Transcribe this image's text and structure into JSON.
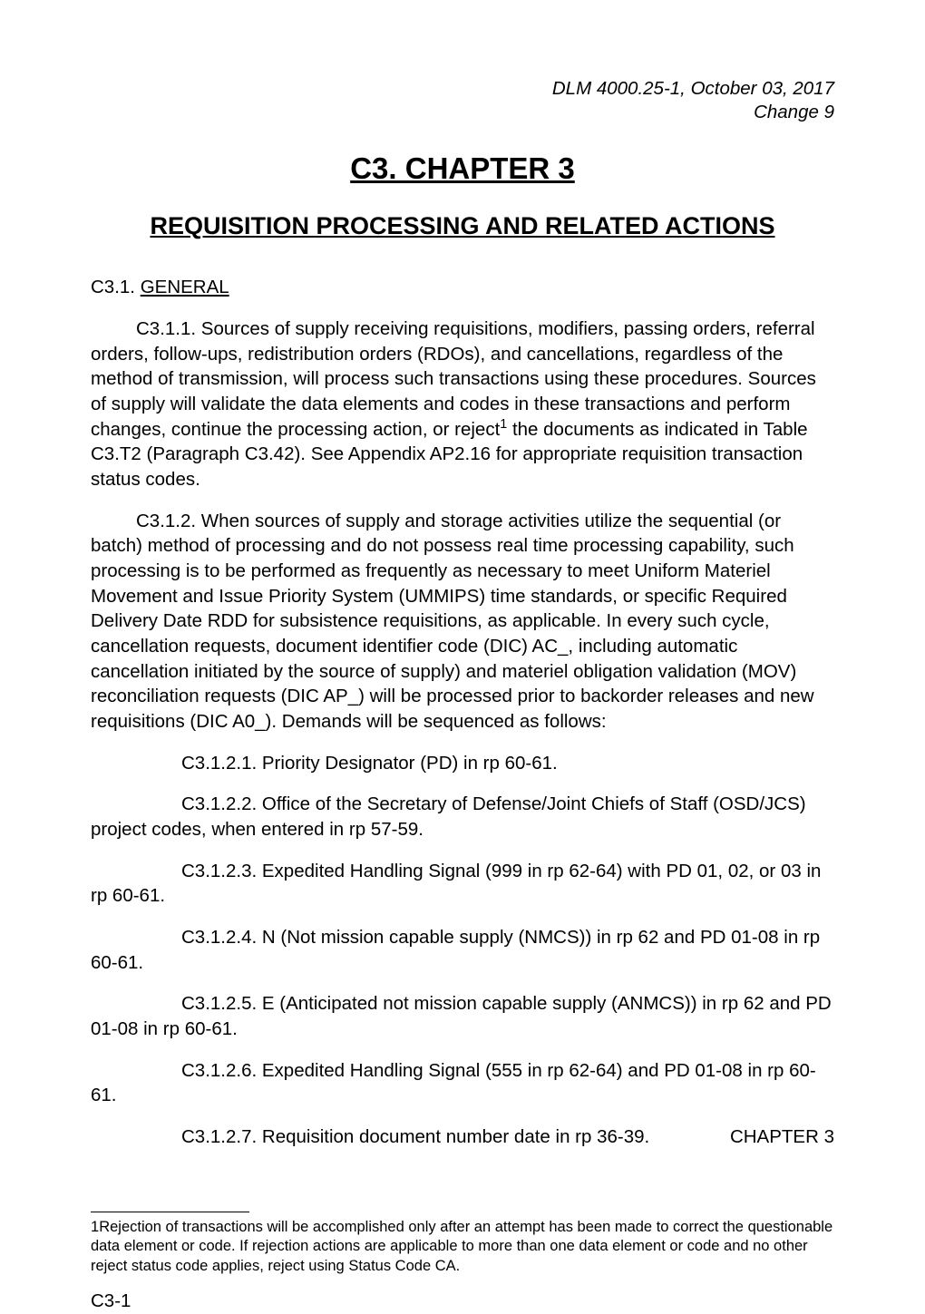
{
  "header": {
    "line1": "DLM 4000.25-1, October 03, 2017",
    "line2": "Change 9"
  },
  "chapter": {
    "title": "C3. CHAPTER 3",
    "subtitle": "REQUISITION PROCESSING AND RELATED ACTIONS"
  },
  "section": {
    "label": "C3.1.  ",
    "title": "GENERAL"
  },
  "paragraphs": {
    "p1": "C3.1.1.  Sources of supply receiving requisitions, modifiers, passing orders, referral orders, follow-ups, redistribution orders (RDOs), and cancellations, regardless of the method of transmission, will process such transactions using these procedures.  Sources of supply will validate the data elements and codes in these transactions and perform changes, continue the processing action, or reject",
    "p1_after": " the documents as indicated in Table C3.T2 (Paragraph C3.42).  See Appendix AP2.16 for appropriate requisition transaction status codes.",
    "p2": "C3.1.2.  When sources of supply and storage activities utilize the sequential (or batch) method of processing and do not possess real time processing capability, such processing is to be performed as frequently as necessary to meet Uniform Materiel Movement and Issue Priority System (UMMIPS) time standards, or specific Required Delivery Date RDD for subsistence requisitions, as applicable.  In every such cycle, cancellation requests, document identifier code (DIC) AC_, including automatic cancellation initiated by the source of supply) and materiel obligation validation (MOV) reconciliation requests (DIC AP_) will be processed prior to backorder releases and new requisitions (DIC A0_).  Demands will be sequenced as follows:",
    "p3": "C3.1.2.1.  Priority Designator (PD) in rp 60-61.",
    "p4": "C3.1.2.2.  Office of the Secretary of Defense/Joint Chiefs of Staff (OSD/JCS) project codes, when entered in rp 57-59.",
    "p5": "C3.1.2.3.  Expedited Handling Signal (999 in rp 62-64) with PD 01, 02, or 03 in rp 60-61.",
    "p6": "C3.1.2.4.  N (Not mission capable supply (NMCS)) in rp 62 and PD 01-08 in rp 60-61.",
    "p7": "C3.1.2.5.  E (Anticipated not mission capable supply (ANMCS)) in rp 62 and PD 01-08 in rp 60-61.",
    "p8": "C3.1.2.6.  Expedited Handling Signal (555 in rp 62-64) and PD 01-08 in rp 60-61.",
    "p9": "C3.1.2.7.  Requisition document number date in rp 36-39."
  },
  "footnote": {
    "marker": "1",
    "text": "Rejection of transactions will be accomplished only after an attempt has been made to correct the questionable data element or code.  If rejection actions are applicable to more than one data element or code and no other reject status code applies, reject using Status Code CA."
  },
  "footer": {
    "left": "C3-1",
    "right": "CHAPTER 3"
  }
}
